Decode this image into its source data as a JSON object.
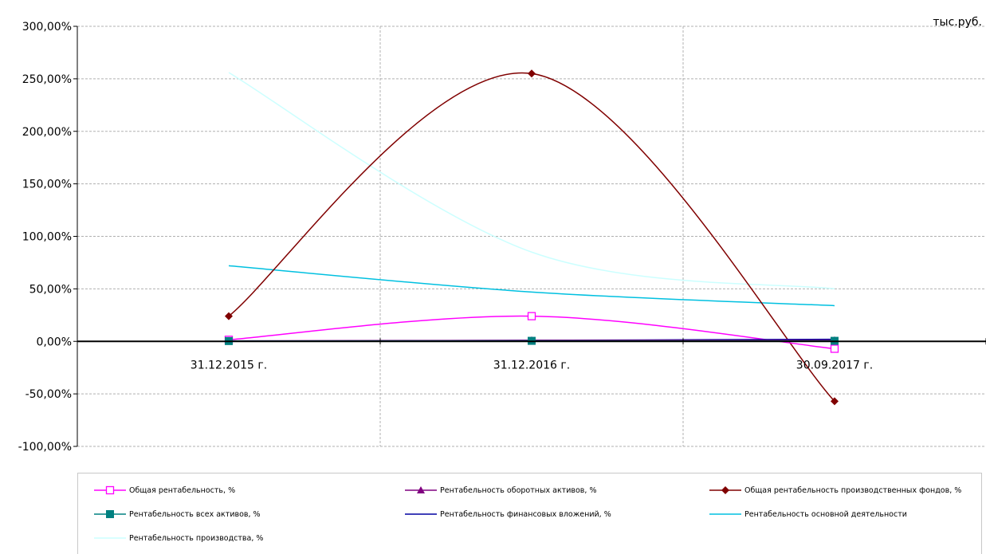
{
  "chart_data": {
    "type": "line",
    "unit_label": "тыс.руб.",
    "categories": [
      "31.12.2015 г.",
      "31.12.2016 г.",
      "30.09.2017 г."
    ],
    "ylim": [
      -100,
      300
    ],
    "yticks": [
      300,
      250,
      200,
      150,
      100,
      50,
      0,
      -50,
      -100
    ],
    "ytick_labels": [
      "300,00%",
      "250,00%",
      "200,00%",
      "150,00%",
      "100,00%",
      "50,00%",
      "0,00%",
      "-50,00%",
      "-100,00%"
    ],
    "grid": true,
    "legend_position": "bottom",
    "series": [
      {
        "name": "Общая рентабельность, %",
        "values": [
          1.5,
          24,
          -7
        ],
        "color": "#ff00ff",
        "marker": "square-open"
      },
      {
        "name": "Рентабельность оборотных активов, %",
        "values": [
          0.5,
          1,
          1
        ],
        "color": "#800080",
        "marker": "triangle"
      },
      {
        "name": "Общая рентабельность производственных фондов, %",
        "values": [
          24,
          255,
          -57
        ],
        "color": "#800000",
        "marker": "diamond"
      },
      {
        "name": "Рентабельность всех активов, %",
        "values": [
          0.3,
          0.5,
          0.5
        ],
        "color": "#008080",
        "marker": "square"
      },
      {
        "name": "Рентабельность финансовых вложений, %",
        "values": [
          0,
          1,
          2
        ],
        "color": "#0000a0",
        "marker": "none"
      },
      {
        "name": "Рентабельность основной деятельности",
        "values": [
          72,
          47,
          34
        ],
        "color": "#00c0e0",
        "marker": "none"
      },
      {
        "name": "Рентабельность производства, %",
        "values": [
          256,
          85,
          50
        ],
        "color": "#ccffff",
        "marker": "none"
      }
    ]
  }
}
